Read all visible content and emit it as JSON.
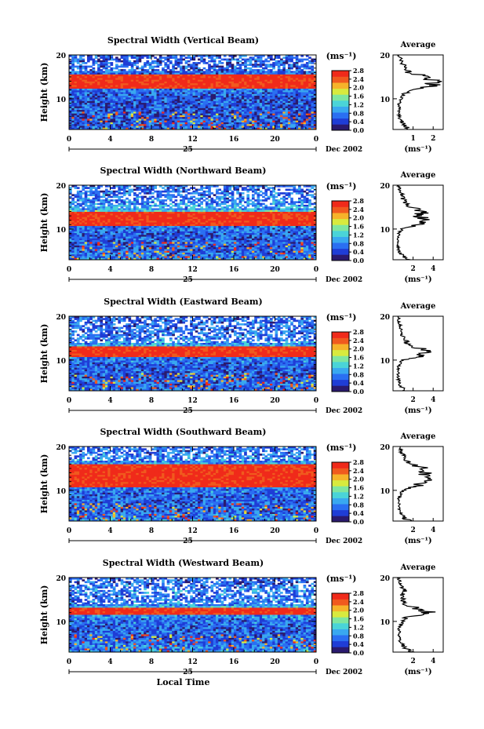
{
  "figure": {
    "date_label": "Dec 2002",
    "day_label": "25",
    "x_axis_title": "Local Time",
    "y_axis_title": "Height (km)",
    "colorbar_unit": "(ms⁻¹)",
    "colorbar_ticks": [
      "0.0",
      "0.4",
      "0.8",
      "1.2",
      "1.6",
      "2.0",
      "2.4",
      "2.8"
    ],
    "average_title": "Average",
    "average_unit": "(ms⁻¹)",
    "palette": [
      "#2a1a6e",
      "#1f3dd6",
      "#2a6ff2",
      "#39a8f0",
      "#4ad4d8",
      "#7fe6a0",
      "#d8ea3e",
      "#f6b32a",
      "#f05a1e",
      "#f02a1a"
    ]
  },
  "chart_data": [
    {
      "type": "heatmap",
      "title": "Spectral Width (Vertical Beam)",
      "xlabel": "",
      "ylabel": "Height (km)",
      "x_ticks": [
        "0",
        "4",
        "8",
        "12",
        "16",
        "20",
        "0"
      ],
      "y_ticks": [
        "10",
        "20"
      ],
      "xlim": [
        0,
        24
      ],
      "ylim": [
        3,
        20
      ],
      "clim": [
        0.0,
        2.8
      ],
      "high_width_band_km": [
        12.5,
        15.5
      ],
      "average_profile": {
        "x_ticks": [
          "1",
          "2"
        ],
        "y_ticks": [
          "10",
          "20"
        ],
        "height_km": [
          3,
          4,
          5,
          6,
          7,
          8,
          9,
          10,
          11,
          12,
          13,
          14,
          15,
          16,
          17,
          18,
          19,
          20
        ],
        "width_ms": [
          0.9,
          0.6,
          0.4,
          0.3,
          0.3,
          0.3,
          0.3,
          0.4,
          0.5,
          0.9,
          1.9,
          2.2,
          1.7,
          0.8,
          0.6,
          0.5,
          0.4,
          0.3
        ]
      }
    },
    {
      "type": "heatmap",
      "title": "Spectral Width (Northward Beam)",
      "xlabel": "",
      "ylabel": "Height (km)",
      "x_ticks": [
        "0",
        "4",
        "8",
        "12",
        "16",
        "20",
        "0"
      ],
      "y_ticks": [
        "10",
        "20"
      ],
      "xlim": [
        0,
        24
      ],
      "ylim": [
        3,
        20
      ],
      "clim": [
        0.0,
        2.8
      ],
      "high_width_band_km": [
        10.5,
        14.0
      ],
      "average_profile": {
        "x_ticks": [
          "2",
          "4"
        ],
        "y_ticks": [
          "10",
          "20"
        ],
        "height_km": [
          3,
          4,
          5,
          6,
          7,
          8,
          9,
          10,
          11,
          12,
          13,
          14,
          15,
          16,
          17,
          18,
          19,
          20
        ],
        "width_ms": [
          1.4,
          0.9,
          0.6,
          0.5,
          0.5,
          0.5,
          0.6,
          0.9,
          2.8,
          3.2,
          2.6,
          3.0,
          1.8,
          1.2,
          1.0,
          0.9,
          0.7,
          0.5
        ]
      }
    },
    {
      "type": "heatmap",
      "title": "Spectral Width (Eastward Beam)",
      "xlabel": "",
      "ylabel": "Height (km)",
      "x_ticks": [
        "0",
        "4",
        "8",
        "12",
        "16",
        "20",
        "0"
      ],
      "y_ticks": [
        "10",
        "20"
      ],
      "xlim": [
        0,
        24
      ],
      "ylim": [
        3,
        20
      ],
      "clim": [
        0.0,
        2.8
      ],
      "high_width_band_km": [
        10.5,
        13.0
      ],
      "average_profile": {
        "x_ticks": [
          "2",
          "4"
        ],
        "y_ticks": [
          "10",
          "20"
        ],
        "height_km": [
          3,
          4,
          5,
          6,
          7,
          8,
          9,
          10,
          11,
          12,
          13,
          14,
          15,
          16,
          17,
          18,
          19,
          20
        ],
        "width_ms": [
          1.2,
          0.8,
          0.6,
          0.5,
          0.5,
          0.5,
          0.6,
          0.9,
          3.0,
          3.4,
          2.2,
          1.4,
          1.0,
          0.9,
          0.8,
          0.7,
          0.6,
          0.5
        ]
      }
    },
    {
      "type": "heatmap",
      "title": "Spectral Width (Southward Beam)",
      "xlabel": "",
      "ylabel": "Height (km)",
      "x_ticks": [
        "0",
        "4",
        "8",
        "12",
        "16",
        "20",
        "0"
      ],
      "y_ticks": [
        "10",
        "20"
      ],
      "xlim": [
        0,
        24
      ],
      "ylim": [
        3,
        20
      ],
      "clim": [
        0.0,
        2.8
      ],
      "high_width_band_km": [
        10.5,
        16.0
      ],
      "average_profile": {
        "x_ticks": [
          "2",
          "4"
        ],
        "y_ticks": [
          "10",
          "20"
        ],
        "height_km": [
          3,
          4,
          5,
          6,
          7,
          8,
          9,
          10,
          11,
          12,
          13,
          14,
          15,
          16,
          17,
          18,
          19,
          20
        ],
        "width_ms": [
          1.6,
          1.0,
          0.7,
          0.6,
          0.6,
          0.6,
          0.7,
          1.0,
          2.4,
          3.0,
          3.4,
          3.2,
          3.0,
          1.8,
          1.2,
          1.0,
          0.8,
          0.6
        ]
      }
    },
    {
      "type": "heatmap",
      "title": "Spectral Width (Westward Beam)",
      "xlabel": "Local Time",
      "ylabel": "Height (km)",
      "x_ticks": [
        "0",
        "4",
        "8",
        "12",
        "16",
        "20",
        "0"
      ],
      "y_ticks": [
        "10",
        "20"
      ],
      "xlim": [
        0,
        24
      ],
      "ylim": [
        3,
        20
      ],
      "clim": [
        0.0,
        2.8
      ],
      "high_width_band_km": [
        11.5,
        13.0
      ],
      "average_profile": {
        "x_ticks": [
          "2",
          "4"
        ],
        "y_ticks": [
          "10",
          "20"
        ],
        "height_km": [
          3,
          4,
          5,
          6,
          7,
          8,
          9,
          10,
          11,
          12,
          13,
          14,
          15,
          16,
          17,
          18,
          19,
          20
        ],
        "width_ms": [
          1.8,
          1.2,
          0.8,
          0.6,
          0.6,
          0.6,
          0.7,
          0.9,
          1.4,
          3.6,
          2.4,
          1.2,
          1.0,
          0.9,
          1.2,
          0.9,
          0.7,
          0.5
        ]
      }
    }
  ]
}
